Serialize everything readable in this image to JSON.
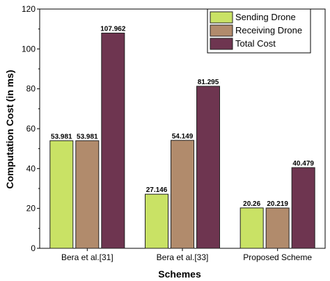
{
  "chart_data": {
    "type": "bar",
    "categories": [
      "Bera et al.[31]",
      "Bera et al.[33]",
      "Proposed Scheme"
    ],
    "series": [
      {
        "name": "Sending Drone",
        "values": [
          53.981,
          27.146,
          20.26
        ],
        "color": "#c9e265"
      },
      {
        "name": "Receiving Drone",
        "values": [
          53.981,
          54.149,
          20.219
        ],
        "color": "#b18b6c"
      },
      {
        "name": "Total Cost",
        "values": [
          107.962,
          81.295,
          40.479
        ],
        "color": "#6e3550"
      }
    ],
    "data_labels": [
      [
        "53.981",
        "27.146",
        "20.26"
      ],
      [
        "53.981",
        "54.149",
        "20.219"
      ],
      [
        "107.962",
        "81.295",
        "40.479"
      ]
    ],
    "xlabel": "Schemes",
    "ylabel": "Computation Cost (in ms)",
    "ylim": [
      0,
      120
    ],
    "yticks": [
      "0",
      "20",
      "40",
      "60",
      "80",
      "100",
      "120"
    ],
    "yticks_values": [
      0,
      20,
      40,
      60,
      80,
      100,
      120
    ],
    "legend_position": "top-right",
    "grid": false
  }
}
